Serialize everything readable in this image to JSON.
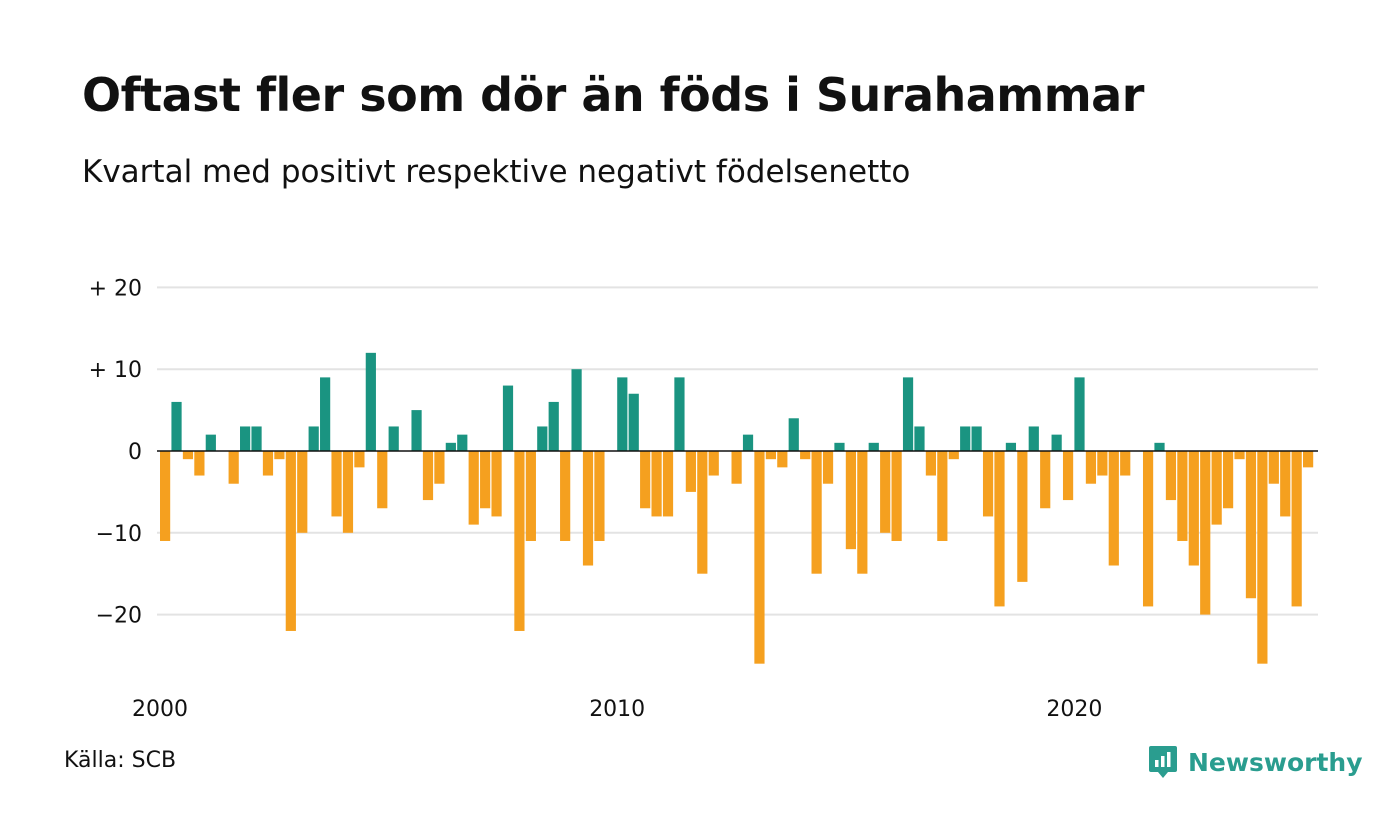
{
  "title": "Oftast fler som dör än föds i Surahammar",
  "subtitle": "Kvartal med positivt respektive negativt födelsenetto",
  "source": "Källa: SCB",
  "brand": {
    "name": "Newsworthy",
    "icon": "newsworthy-logo-icon"
  },
  "colors": {
    "positive": "#1a9481",
    "negative": "#f5a01f",
    "grid": "#e3e3e3",
    "zero_line": "#111111"
  },
  "chart_data": {
    "type": "bar",
    "x_start": "2000 Q1",
    "frequency": "quarterly",
    "y_ticks": [
      {
        "value": 20,
        "label": "+ 20"
      },
      {
        "value": 10,
        "label": "+ 10"
      },
      {
        "value": 0,
        "label": "0"
      },
      {
        "value": -10,
        "label": "−10"
      },
      {
        "value": -20,
        "label": "−20"
      }
    ],
    "x_ticks": [
      {
        "quarter_index": 0,
        "label": "2000"
      },
      {
        "quarter_index": 40,
        "label": "2010"
      },
      {
        "quarter_index": 80,
        "label": "2020"
      }
    ],
    "ylim": [
      -28,
      22
    ],
    "grid": true,
    "values": [
      -11,
      6,
      -1,
      -3,
      2,
      0,
      -4,
      3,
      3,
      -3,
      -1,
      -22,
      -10,
      3,
      9,
      -8,
      -10,
      -2,
      12,
      -7,
      3,
      0,
      5,
      -6,
      -4,
      1,
      2,
      -9,
      -7,
      -8,
      8,
      -22,
      -11,
      3,
      6,
      -11,
      10,
      -14,
      -11,
      0,
      9,
      7,
      -7,
      -8,
      -8,
      9,
      -5,
      -15,
      -3,
      0,
      -4,
      2,
      -26,
      -1,
      -2,
      4,
      -1,
      -15,
      -4,
      1,
      -12,
      -15,
      1,
      -10,
      -11,
      9,
      3,
      -3,
      -11,
      -1,
      3,
      3,
      -8,
      -19,
      1,
      -16,
      3,
      -7,
      2,
      -6,
      9,
      -4,
      -3,
      -14,
      -3,
      0,
      -19,
      1,
      -6,
      -11,
      -14,
      -20,
      -9,
      -7,
      -1,
      -18,
      -26,
      -4,
      -8,
      -19,
      -2
    ]
  }
}
